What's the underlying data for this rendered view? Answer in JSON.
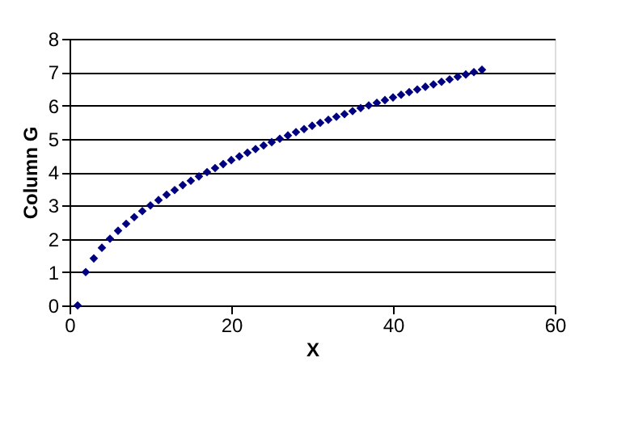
{
  "chart_data": {
    "type": "scatter",
    "xlabel": "X",
    "ylabel": "Column G",
    "x": [
      1,
      2,
      3,
      4,
      5,
      6,
      7,
      8,
      9,
      10,
      11,
      12,
      13,
      14,
      15,
      16,
      17,
      18,
      19,
      20,
      21,
      22,
      23,
      24,
      25,
      26,
      27,
      28,
      29,
      30,
      31,
      32,
      33,
      34,
      35,
      36,
      37,
      38,
      39,
      40,
      41,
      42,
      43,
      44,
      45,
      46,
      47,
      48,
      49,
      50,
      51
    ],
    "series": [
      {
        "color": "#000080",
        "values": [
          0,
          1,
          1.41,
          1.73,
          2,
          2.24,
          2.45,
          2.65,
          2.83,
          3,
          3.16,
          3.32,
          3.46,
          3.61,
          3.74,
          3.87,
          4,
          4.12,
          4.24,
          4.36,
          4.47,
          4.58,
          4.69,
          4.8,
          4.9,
          5,
          5.1,
          5.2,
          5.29,
          5.39,
          5.48,
          5.57,
          5.66,
          5.74,
          5.83,
          5.92,
          6,
          6.08,
          6.16,
          6.24,
          6.32,
          6.4,
          6.48,
          6.56,
          6.63,
          6.71,
          6.78,
          6.86,
          6.93,
          7,
          7.07
        ]
      }
    ],
    "xlim": [
      0,
      60
    ],
    "xticks": [
      0,
      20,
      40,
      60
    ],
    "ylim": [
      0,
      8
    ],
    "yticks": [
      0,
      1,
      2,
      3,
      4,
      5,
      6,
      7,
      8
    ],
    "grid": "y",
    "marker": "diamond"
  }
}
